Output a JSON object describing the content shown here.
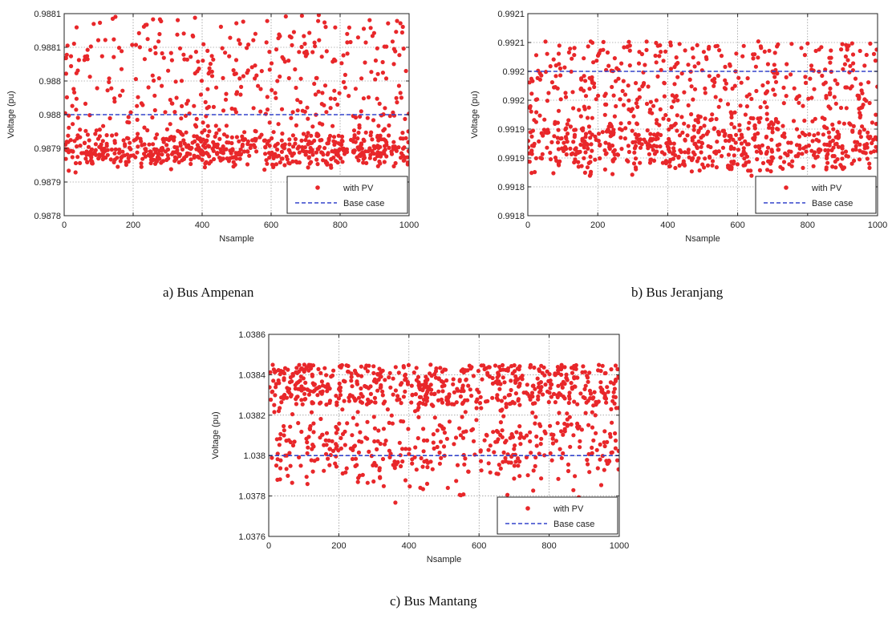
{
  "chart_data": [
    {
      "type": "scatter",
      "caption": "a) Bus Ampenan",
      "xlabel": "Nsample",
      "ylabel": "Voltage (pu)",
      "xlim": [
        0,
        1000
      ],
      "ylim": [
        0.98785,
        0.98815
      ],
      "xticks": [
        0,
        200,
        400,
        600,
        800,
        1000
      ],
      "yticks": [
        {
          "v": 0.98785,
          "label": "0.9878"
        },
        {
          "v": 0.9879,
          "label": "0.9879"
        },
        {
          "v": 0.98795,
          "label": "0.9879"
        },
        {
          "v": 0.988,
          "label": "0.988"
        },
        {
          "v": 0.98805,
          "label": "0.988"
        },
        {
          "v": 0.9881,
          "label": "0.9881"
        },
        {
          "v": 0.98815,
          "label": "0.9881"
        }
      ],
      "grid": true,
      "legend_position": "bottom-right",
      "series": [
        {
          "name": "with PV",
          "kind": "points",
          "color": "#e8272a",
          "n": 1000,
          "low_band": [
            0.98791,
            0.987985
          ],
          "high_band": [
            0.98796,
            0.988148
          ],
          "low_fraction": 0.6
        },
        {
          "name": "Base case",
          "kind": "line",
          "color": "#3344cc",
          "value": 0.988
        }
      ]
    },
    {
      "type": "scatter",
      "caption": "b) Bus Jeranjang",
      "xlabel": "Nsample",
      "ylabel": "Voltage (pu)",
      "xlim": [
        0,
        1000
      ],
      "ylim": [
        0.99175,
        0.9921
      ],
      "xticks": [
        0,
        200,
        400,
        600,
        800,
        1000
      ],
      "yticks": [
        {
          "v": 0.99175,
          "label": "0.9918"
        },
        {
          "v": 0.9918,
          "label": "0.9918"
        },
        {
          "v": 0.99185,
          "label": "0.9919"
        },
        {
          "v": 0.9919,
          "label": "0.9919"
        },
        {
          "v": 0.99195,
          "label": "0.992"
        },
        {
          "v": 0.992,
          "label": "0.992"
        },
        {
          "v": 0.99205,
          "label": "0.9921"
        },
        {
          "v": 0.9921,
          "label": "0.9921"
        }
      ],
      "grid": true,
      "legend_position": "bottom-right",
      "series": [
        {
          "name": "with PV",
          "kind": "points",
          "color": "#e8272a",
          "n": 1000,
          "low_band": [
            0.991805,
            0.99193
          ],
          "high_band": [
            0.99189,
            0.992052
          ],
          "low_fraction": 0.55
        },
        {
          "name": "Base case",
          "kind": "line",
          "color": "#3344cc",
          "value": 0.992
        }
      ]
    },
    {
      "type": "scatter",
      "caption": "c) Bus Mantang",
      "xlabel": "Nsample",
      "ylabel": "Voltage (pu)",
      "xlim": [
        0,
        1000
      ],
      "ylim": [
        1.0376,
        1.0386
      ],
      "xticks": [
        0,
        200,
        400,
        600,
        800,
        1000
      ],
      "yticks": [
        {
          "v": 1.0376,
          "label": "1.0376"
        },
        {
          "v": 1.0378,
          "label": "1.0378"
        },
        {
          "v": 1.038,
          "label": "1.038"
        },
        {
          "v": 1.0382,
          "label": "1.0382"
        },
        {
          "v": 1.0384,
          "label": "1.0384"
        },
        {
          "v": 1.0386,
          "label": "1.0386"
        }
      ],
      "grid": true,
      "legend_position": "bottom-right",
      "series": [
        {
          "name": "with PV",
          "kind": "points",
          "color": "#e8272a",
          "n": 1000,
          "low_band": [
            1.03775,
            1.03835
          ],
          "high_band": [
            1.03825,
            1.03845
          ],
          "low_fraction": 0.45
        },
        {
          "name": "Base case",
          "kind": "line",
          "color": "#3344cc",
          "value": 1.038
        }
      ]
    }
  ]
}
